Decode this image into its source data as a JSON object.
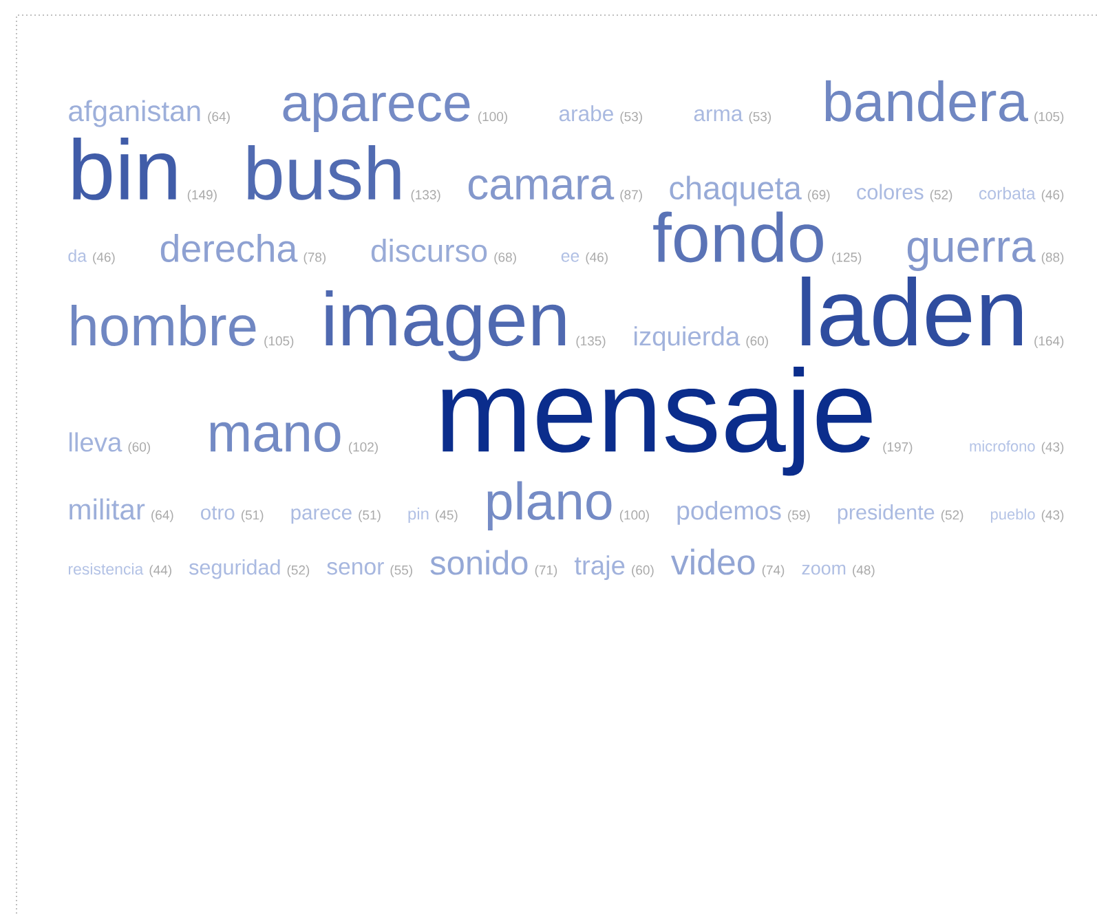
{
  "chart_data": {
    "type": "other",
    "value_labels": [
      "(64)",
      "(100)",
      "(53)",
      "(53)",
      "(105)",
      "(149)",
      "(133)",
      "(87)",
      "(69)",
      "(52)",
      "(46)",
      "(46)",
      "(78)",
      "(68)",
      "(46)",
      "(125)",
      "(88)",
      "(105)",
      "(135)",
      "(60)",
      "(164)",
      "(60)",
      "(102)",
      "(197)",
      "(43)",
      "(64)",
      "(51)",
      "(51)",
      "(45)",
      "(100)",
      "(59)",
      "(52)",
      "(43)",
      "(44)",
      "(52)",
      "(55)",
      "(71)",
      "(60)",
      "(74)",
      "(48)"
    ],
    "categories": [
      "afganistan",
      "aparece",
      "arabe",
      "arma",
      "bandera",
      "bin",
      "bush",
      "camara",
      "chaqueta",
      "colores",
      "corbata",
      "da",
      "derecha",
      "discurso",
      "ee",
      "fondo",
      "guerra",
      "hombre",
      "imagen",
      "izquierda",
      "laden",
      "lleva",
      "mano",
      "mensaje",
      "microfono",
      "militar",
      "otro",
      "parece",
      "pin",
      "plano",
      "podemos",
      "presidente",
      "pueblo",
      "resistencia",
      "seguridad",
      "senor",
      "sonido",
      "traje",
      "video",
      "zoom"
    ],
    "values": [
      64,
      100,
      53,
      53,
      105,
      149,
      133,
      87,
      69,
      52,
      46,
      46,
      78,
      68,
      46,
      125,
      88,
      105,
      135,
      60,
      164,
      60,
      102,
      197,
      43,
      64,
      51,
      51,
      45,
      100,
      59,
      52,
      43,
      44,
      52,
      55,
      71,
      60,
      74,
      48
    ],
    "colors": [
      "#9dafda",
      "#758bc5",
      "#a9b9e0",
      "#a9b9e0",
      "#7087c2",
      "#405ca8",
      "#516bb1",
      "#8498cc",
      "#97aad7",
      "#aabae1",
      "#b1c0e4",
      "#b1c0e4",
      "#8ea1d2",
      "#99abd7",
      "#b1c0e4",
      "#5a73b6",
      "#8397cc",
      "#7087c2",
      "#4f69b0",
      "#a1b2dc",
      "#2f4d9f",
      "#a1b2dc",
      "#738ac4",
      "#0b2d8c",
      "#b4c3e6",
      "#9dafda",
      "#abbbe1",
      "#abbbe1",
      "#b2c1e5",
      "#758bc5",
      "#a2b3dd",
      "#aabae1",
      "#b4c3e6",
      "#b3c2e5",
      "#aabae1",
      "#a7b7df",
      "#95a8d6",
      "#a1b2dc",
      "#92a5d4",
      "#afbee3"
    ]
  }
}
